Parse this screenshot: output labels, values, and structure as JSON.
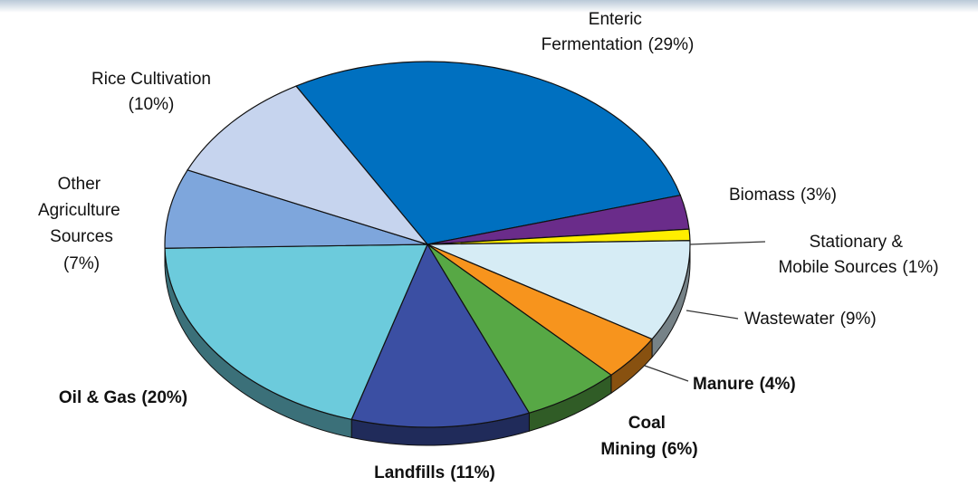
{
  "chart_data": {
    "type": "pie",
    "categories": [
      "Enteric Fermentation",
      "Biomass",
      "Stationary & Mobile Sources",
      "Wastewater",
      "Manure",
      "Coal Mining",
      "Landfills",
      "Oil & Gas",
      "Other Agriculture Sources",
      "Rice Cultivation"
    ],
    "values": [
      29,
      3,
      1,
      9,
      4,
      6,
      11,
      20,
      7,
      10
    ],
    "value_labels": [
      "(29%)",
      "(3%)",
      "(1%)",
      "(9%)",
      "(4%)",
      "(6%)",
      "(11%)",
      "(20%)",
      "(7%)",
      "(10%)"
    ],
    "colors": [
      "#0070c0",
      "#6a2c8a",
      "#ffee00",
      "#d6ecf5",
      "#f7941d",
      "#57a845",
      "#3b4fa3",
      "#6ccbdc",
      "#7ea6dc",
      "#c6d4ee"
    ]
  }
}
